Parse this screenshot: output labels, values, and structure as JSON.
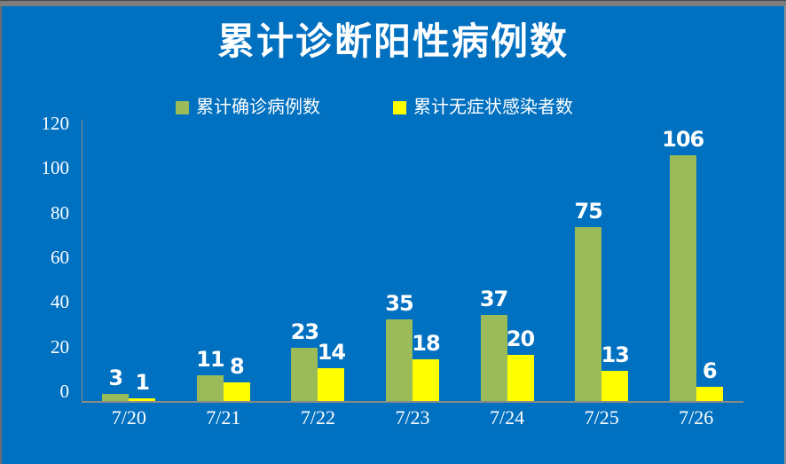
{
  "frame": {
    "background": "#0070C0",
    "top_strip_color": "#7E7E7E"
  },
  "title": {
    "text": "累计诊断阳性病例数",
    "color": "#FFFFFF"
  },
  "legend": {
    "items": [
      {
        "label": "累计确诊病例数",
        "color": "#9BBB59"
      },
      {
        "label": "累计无症状感染者数",
        "color": "#FFFF00"
      }
    ]
  },
  "chart_data": {
    "type": "bar",
    "title": "累计诊断阳性病例数",
    "categories": [
      "7/20",
      "7/21",
      "7/22",
      "7/23",
      "7/24",
      "7/25",
      "7/26"
    ],
    "series": [
      {
        "name": "累计确诊病例数",
        "color": "#9BBB59",
        "values": [
          3,
          11,
          23,
          35,
          37,
          75,
          106
        ]
      },
      {
        "name": "累计无症状感染者数",
        "color": "#FFFF00",
        "values": [
          1,
          8,
          14,
          18,
          20,
          13,
          6
        ]
      }
    ],
    "xlabel": "",
    "ylabel": "",
    "ylim": [
      0,
      120
    ],
    "yticks": [
      0,
      20,
      40,
      60,
      80,
      100,
      120
    ],
    "grid": false,
    "legend_position": "top",
    "data_labels": true,
    "colors": {
      "axis": "#8C8C84",
      "text": "#FFFFFF",
      "background": "#0070C0"
    }
  }
}
